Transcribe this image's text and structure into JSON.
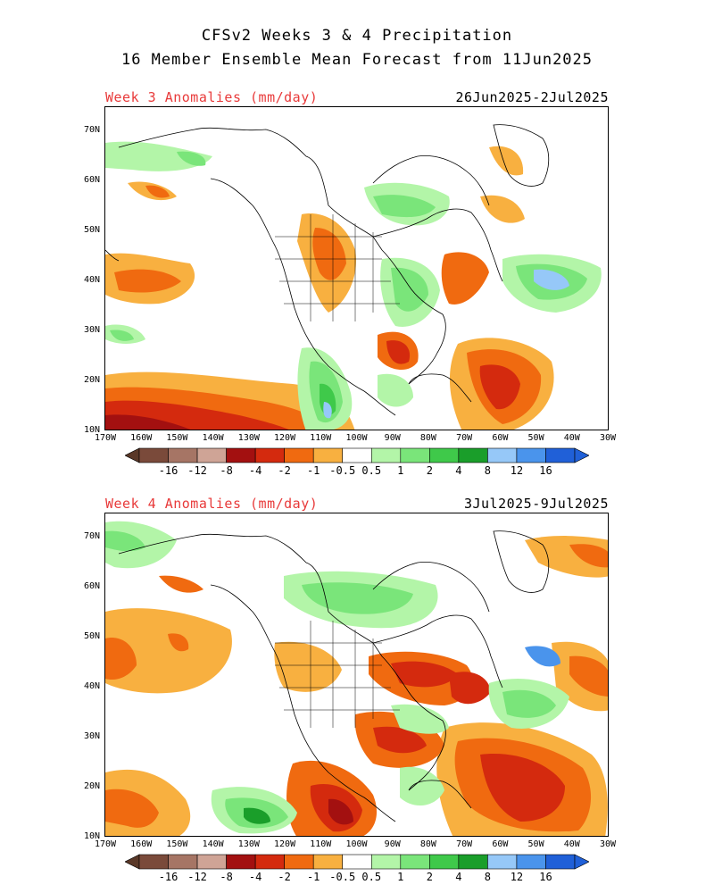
{
  "title": {
    "line1": "CFSv2 Weeks 3 & 4 Precipitation",
    "line2": "16 Member Ensemble Mean Forecast from 11Jun2025"
  },
  "panels": [
    {
      "label": "Week 3 Anomalies (mm/day)",
      "dates": "26Jun2025-2Jul2025",
      "label_color": "#e83a3a"
    },
    {
      "label": "Week 4 Anomalies (mm/day)",
      "dates": "3Jul2025-9Jul2025",
      "label_color": "#e83a3a"
    }
  ],
  "lat_ticks": [
    "70N",
    "60N",
    "50N",
    "40N",
    "30N",
    "20N",
    "10N"
  ],
  "lon_ticks": [
    "170W",
    "160W",
    "150W",
    "140W",
    "130W",
    "120W",
    "110W",
    "100W",
    "90W",
    "80W",
    "70W",
    "60W",
    "50W",
    "40W",
    "30W"
  ],
  "colorbar": {
    "labels": [
      "-16",
      "-12",
      "-8",
      "-4",
      "-2",
      "-1",
      "-0.5",
      "0.5",
      "1",
      "2",
      "4",
      "8",
      "12",
      "16"
    ],
    "colors": [
      "#7a4a3a",
      "#a67565",
      "#cfa496",
      "#a31010",
      "#d42a0e",
      "#f06a10",
      "#f8b040",
      "#ffffff",
      "#b3f5a8",
      "#7ae57a",
      "#3fc94a",
      "#1a9e2a",
      "#96c8f8",
      "#4a94ec",
      "#2060d8"
    ],
    "low_end": "#5a3828",
    "high_end": "#2060d8"
  },
  "legend_colors": {
    "dry_light": "#f8b040",
    "dry_mid": "#f06a10",
    "dry_strong": "#d42a0e",
    "dry_extreme": "#a31010",
    "wet_light": "#b3f5a8",
    "wet_mid": "#7ae57a",
    "wet_strong": "#3fc94a",
    "wet_extreme": "#96c8f8",
    "wet_max": "#4a94ec"
  }
}
